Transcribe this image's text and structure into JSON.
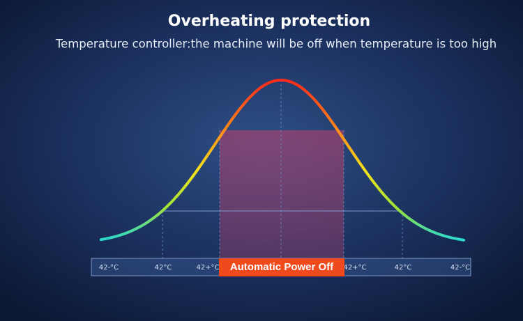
{
  "header": {
    "title": "Overheating protection",
    "subtitle": "Temperature controller:the machine will be off when temperature is too high"
  },
  "scale": {
    "labels": [
      "42-°C",
      "42°C",
      "42+°C",
      "42+°C",
      "42°C",
      "42-°C"
    ],
    "power_off": "Automatic Power Off"
  }
}
